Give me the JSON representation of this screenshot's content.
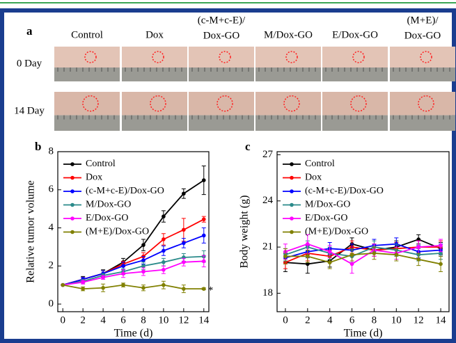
{
  "panel_a": {
    "label": "a",
    "columns": [
      [
        "Control"
      ],
      [
        "Dox"
      ],
      [
        "(c-M+c-E)/",
        "Dox-GO"
      ],
      [
        "M/Dox-GO"
      ],
      [
        "E/Dox-GO"
      ],
      [
        "(M+E)/",
        "Dox-GO"
      ]
    ],
    "rows": [
      "0 Day",
      "14 Day"
    ]
  },
  "chart_data": [
    {
      "type": "line",
      "panel_label": "b",
      "x_label": "Time (d)",
      "y_label": "Relative tumor volume",
      "x": [
        0,
        2,
        4,
        6,
        8,
        10,
        12,
        14
      ],
      "xlim": [
        -0.5,
        14.5
      ],
      "xticks": [
        0,
        2,
        4,
        6,
        8,
        10,
        12,
        14
      ],
      "ylim": [
        -0.4,
        8
      ],
      "yticks": [
        0,
        2,
        4,
        6,
        8
      ],
      "legend": "upper left",
      "annotation": "*",
      "series": [
        {
          "name": "Control",
          "color": "#000000",
          "values": [
            1,
            1.3,
            1.6,
            2.2,
            3.1,
            4.6,
            5.8,
            6.5
          ],
          "errors": [
            0,
            0.15,
            0.2,
            0.2,
            0.3,
            0.3,
            0.25,
            0.75
          ]
        },
        {
          "name": "Dox",
          "color": "#ff0000",
          "values": [
            1,
            1.3,
            1.6,
            2.1,
            2.5,
            3.4,
            3.9,
            4.45
          ],
          "errors": [
            0,
            0.1,
            0.15,
            0.15,
            0.2,
            0.3,
            0.6,
            0.15
          ]
        },
        {
          "name": "(c-M+c-E)/Dox-GO",
          "color": "#0000ff",
          "values": [
            1,
            1.3,
            1.6,
            2.0,
            2.3,
            2.8,
            3.2,
            3.6
          ],
          "errors": [
            0,
            0.1,
            0.15,
            0.2,
            0.2,
            0.25,
            0.25,
            0.4
          ]
        },
        {
          "name": "M/Dox-GO",
          "color": "#2a8a8a",
          "values": [
            1,
            1.2,
            1.5,
            1.7,
            2.0,
            2.2,
            2.45,
            2.5
          ],
          "errors": [
            0,
            0.1,
            0.1,
            0.15,
            0.2,
            0.2,
            0.2,
            0.3
          ]
        },
        {
          "name": "E/Dox-GO",
          "color": "#ff00ff",
          "values": [
            1,
            1.15,
            1.4,
            1.6,
            1.7,
            1.8,
            2.2,
            2.25
          ],
          "errors": [
            0,
            0.1,
            0.1,
            0.2,
            0.2,
            0.2,
            0.2,
            0.3
          ]
        },
        {
          "name": "(M+E)/Dox-GO",
          "color": "#808000",
          "values": [
            1,
            0.8,
            0.85,
            1.0,
            0.85,
            1.0,
            0.8,
            0.8
          ],
          "errors": [
            0,
            0.1,
            0.2,
            0.1,
            0.15,
            0.2,
            0.2,
            0.05
          ]
        }
      ]
    },
    {
      "type": "line",
      "panel_label": "c",
      "x_label": "Time (d)",
      "y_label": "Body weight (g)",
      "x": [
        0,
        2,
        4,
        6,
        8,
        10,
        12,
        14
      ],
      "xlim": [
        -0.75,
        14.75
      ],
      "xticks": [
        0,
        2,
        4,
        6,
        8,
        10,
        12,
        14
      ],
      "ylim": [
        16.8,
        27.2
      ],
      "yticks": [
        18,
        21,
        24,
        27
      ],
      "legend": "upper left",
      "series": [
        {
          "name": "Control",
          "color": "#000000",
          "values": [
            20.0,
            19.9,
            20.1,
            21.2,
            20.8,
            21.0,
            21.5,
            20.9
          ],
          "errors": [
            0.6,
            0.6,
            0.4,
            0.4,
            0.4,
            0.4,
            0.3,
            0.4
          ]
        },
        {
          "name": "Dox",
          "color": "#ff0000",
          "values": [
            20.0,
            20.6,
            20.4,
            21.0,
            20.8,
            20.9,
            21.0,
            21.0
          ],
          "errors": [
            0.4,
            0.5,
            0.4,
            0.4,
            0.4,
            0.4,
            0.4,
            0.4
          ]
        },
        {
          "name": "(c-M+c-E)/Dox-GO",
          "color": "#0000ff",
          "values": [
            20.3,
            20.7,
            20.9,
            20.8,
            21.1,
            21.2,
            20.7,
            20.8
          ],
          "errors": [
            0.4,
            0.4,
            0.4,
            0.4,
            0.4,
            0.4,
            0.4,
            0.4
          ]
        },
        {
          "name": "M/Dox-GO",
          "color": "#2a8a8a",
          "values": [
            20.5,
            21.0,
            20.6,
            20.4,
            21.0,
            20.8,
            20.5,
            20.6
          ],
          "errors": [
            0.4,
            0.4,
            0.4,
            0.4,
            0.4,
            0.4,
            0.4,
            0.4
          ]
        },
        {
          "name": "E/Dox-GO",
          "color": "#ff00ff",
          "values": [
            20.7,
            21.2,
            20.7,
            19.9,
            20.8,
            20.6,
            21.0,
            21.1
          ],
          "errors": [
            0.5,
            0.6,
            0.4,
            0.6,
            0.4,
            0.4,
            0.4,
            0.4
          ]
        },
        {
          "name": "(M+E)/Dox-GO",
          "color": "#808000",
          "values": [
            20.4,
            20.4,
            20.0,
            20.5,
            20.6,
            20.5,
            20.2,
            19.9
          ],
          "errors": [
            0.5,
            0.4,
            0.4,
            0.4,
            0.4,
            0.4,
            0.4,
            0.5
          ]
        }
      ]
    }
  ]
}
